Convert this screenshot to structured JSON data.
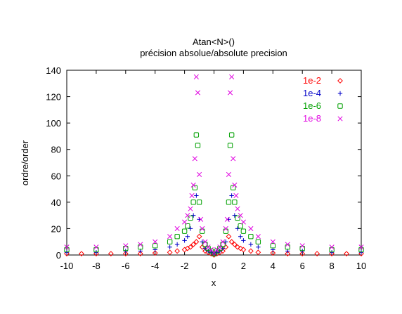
{
  "chart_data": {
    "type": "scatter",
    "title": "Atan<N>()",
    "subtitle": "précision absolue/absolute precision",
    "xlabel": "x",
    "ylabel": "ordre/order",
    "xlim": [
      -10,
      10
    ],
    "ylim": [
      0,
      140
    ],
    "x_ticks": [
      "-10",
      "-8",
      "-6",
      "-4",
      "-2",
      "0",
      "2",
      "4",
      "6",
      "8",
      "10"
    ],
    "y_ticks": [
      "0",
      "20",
      "40",
      "60",
      "80",
      "100",
      "120",
      "140"
    ],
    "grid": false,
    "legend_position": "top-right",
    "series": [
      {
        "name": "1e-2",
        "color": "#ff0000",
        "marker": "diamond",
        "x": [
          -10,
          -9,
          -8,
          -7,
          -6,
          -5,
          -4,
          -3,
          -2.5,
          -2,
          -1.8,
          -1.6,
          -1.4,
          -1.2,
          -1,
          -0.8,
          -0.6,
          -0.4,
          -0.2,
          0,
          0.2,
          0.4,
          0.6,
          0.8,
          1,
          1.2,
          1.4,
          1.6,
          1.8,
          2,
          2.5,
          3,
          4,
          5,
          6,
          7,
          8,
          9,
          10
        ],
        "y": [
          1,
          1,
          1,
          1,
          1,
          1,
          1.5,
          2,
          3,
          4,
          5,
          6,
          8,
          10,
          14,
          6,
          3,
          2,
          1,
          0,
          1,
          2,
          3,
          6,
          14,
          10,
          8,
          6,
          5,
          4,
          3,
          2,
          1.5,
          1,
          1,
          1,
          1,
          1,
          1
        ]
      },
      {
        "name": "1e-4",
        "color": "#0000c8",
        "marker": "plus",
        "x": [
          -10,
          -8,
          -6,
          -5,
          -4,
          -3,
          -2.5,
          -2,
          -1.8,
          -1.6,
          -1.4,
          -1.2,
          -1,
          -0.8,
          -0.6,
          -0.4,
          -0.2,
          0,
          0.2,
          0.4,
          0.6,
          0.8,
          1,
          1.2,
          1.4,
          1.6,
          1.8,
          2,
          2.5,
          3,
          4,
          5,
          6,
          8,
          10
        ],
        "y": [
          2,
          2,
          3,
          3,
          4,
          6,
          8,
          11,
          14,
          20,
          30,
          45,
          27,
          10,
          5,
          3,
          2,
          1,
          2,
          3,
          5,
          10,
          27,
          45,
          30,
          20,
          14,
          11,
          8,
          6,
          4,
          3,
          3,
          2,
          2
        ]
      },
      {
        "name": "1e-6",
        "color": "#00a000",
        "marker": "square",
        "x": [
          -10,
          -8,
          -6,
          -5,
          -4,
          -3,
          -2.5,
          -2,
          -1.8,
          -1.6,
          -1.4,
          -1.3,
          -1.2,
          -1.1,
          -1,
          -0.8,
          -0.6,
          -0.4,
          -0.2,
          0,
          0.2,
          0.4,
          0.6,
          0.8,
          1,
          1.1,
          1.2,
          1.3,
          1.4,
          1.6,
          1.8,
          2,
          2.5,
          3,
          4,
          5,
          6,
          8,
          10
        ],
        "y": [
          4,
          4,
          5,
          6,
          7,
          10,
          14,
          18,
          22,
          28,
          40,
          51,
          91,
          83,
          40,
          18,
          8,
          5,
          3,
          1,
          3,
          5,
          8,
          18,
          40,
          83,
          91,
          51,
          40,
          28,
          22,
          18,
          14,
          10,
          7,
          6,
          5,
          4,
          4
        ]
      },
      {
        "name": "1e-8",
        "color": "#e000e0",
        "marker": "cross",
        "x": [
          -10,
          -8,
          -6,
          -5,
          -4,
          -3,
          -2.5,
          -2,
          -1.8,
          -1.6,
          -1.5,
          -1.4,
          -1.3,
          -1.2,
          -1.1,
          -1,
          -0.9,
          -0.8,
          -0.6,
          -0.4,
          -0.2,
          0,
          0.2,
          0.4,
          0.6,
          0.8,
          0.9,
          1,
          1.1,
          1.2,
          1.3,
          1.4,
          1.5,
          1.6,
          1.8,
          2,
          2.5,
          3,
          4,
          5,
          6,
          8,
          10
        ],
        "y": [
          6,
          6,
          7,
          8,
          10,
          14,
          20,
          25,
          30,
          35,
          45,
          53,
          73,
          135,
          123,
          61,
          27,
          20,
          10,
          6,
          4,
          2,
          4,
          6,
          10,
          20,
          27,
          61,
          123,
          135,
          73,
          53,
          45,
          35,
          30,
          25,
          20,
          14,
          10,
          8,
          7,
          6,
          6
        ]
      }
    ]
  }
}
